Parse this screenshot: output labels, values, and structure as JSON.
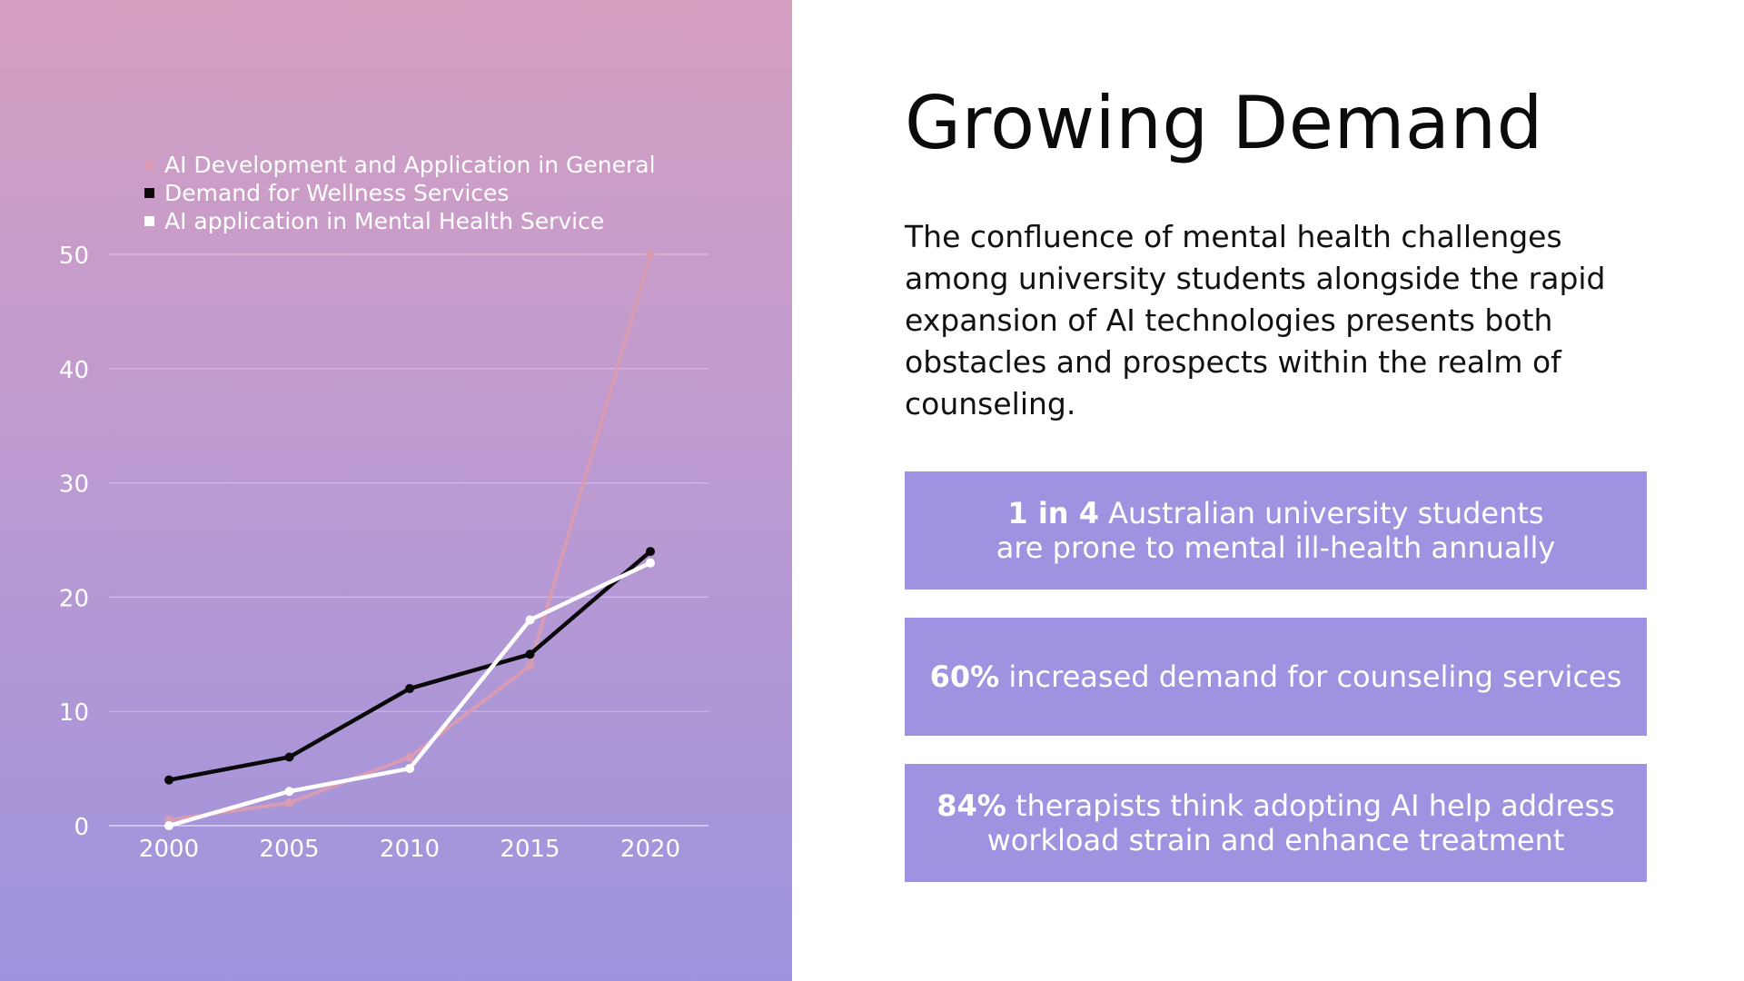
{
  "slide": {
    "title": "Growing Demand",
    "intro": "The confluence of mental health challenges among university students alongside the rapid expansion of AI technologies presents both obstacles and prospects within the realm of counseling."
  },
  "stats": [
    {
      "highlight": "1 in 4",
      "line1": " Australian university students",
      "line2": "are prone to mental ill-health annually"
    },
    {
      "highlight": "60%",
      "line1": " increased demand for counseling services",
      "line2": ""
    },
    {
      "highlight": "84%",
      "line1": " therapists think adopting AI help address",
      "line2": "workload strain and enhance treatment"
    }
  ],
  "colors": {
    "ai_general": "#d89bb4",
    "wellness": "#0a0a0a",
    "ai_mental": "#ffffff",
    "stat_box": "#9d93e0"
  },
  "chart_data": {
    "type": "line",
    "title": "",
    "xlabel": "",
    "ylabel": "",
    "categories": [
      "2000",
      "2005",
      "2010",
      "2015",
      "2020"
    ],
    "ylim": [
      0,
      50
    ],
    "yticks": [
      0,
      10,
      20,
      30,
      40,
      50
    ],
    "grid": true,
    "legend_position": "top-left",
    "series": [
      {
        "name": "AI Development and Application in General",
        "color": "#d89bb4",
        "values": [
          0.5,
          2,
          6,
          14,
          50
        ]
      },
      {
        "name": "Demand for Wellness Services",
        "color": "#0a0a0a",
        "values": [
          4,
          6,
          12,
          15,
          24
        ]
      },
      {
        "name": "AI application in Mental Health Service",
        "color": "#ffffff",
        "values": [
          0,
          3,
          5,
          18,
          23
        ]
      }
    ]
  }
}
